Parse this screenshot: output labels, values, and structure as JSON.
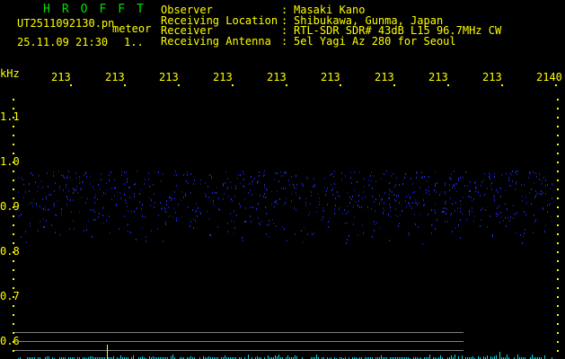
{
  "app": {
    "title": "HROFFT"
  },
  "file": {
    "name": "UT2511092130.pn",
    "mode": "meteor",
    "datetime": "25.11.09 21:30",
    "count": "1.."
  },
  "info": {
    "rows": [
      {
        "label": "Observer",
        "value": "Masaki Kano"
      },
      {
        "label": "Receiving Location",
        "value": "Shibukawa, Gunma, Japan"
      },
      {
        "label": "Receiver",
        "value": "RTL-SDR SDR# 43dB L15 96.7MHz CW"
      },
      {
        "label": "Receiving Antenna",
        "value": "5el Yagi Az 280 for Seoul"
      }
    ]
  },
  "axis": {
    "y_unit": "kHz",
    "y_labels": [
      "1.1",
      "1.0",
      "0.9",
      "0.8",
      "0.7",
      "0.6"
    ],
    "x_labels": [
      "213",
      "213",
      "213",
      "213",
      "213",
      "213",
      "213",
      "213",
      "213",
      "2140"
    ]
  },
  "colors": {
    "text": "#ffff00",
    "title": "#00e000",
    "signal": "#2030ff",
    "level": "#00e0e0",
    "grid": "#808080"
  }
}
